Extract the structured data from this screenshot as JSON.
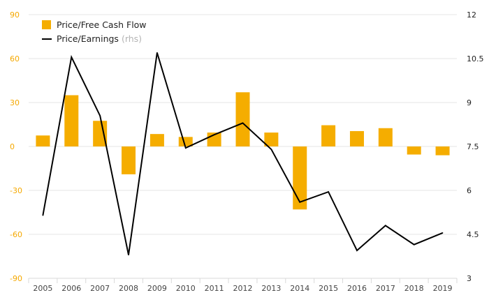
{
  "chart_data": {
    "type": "bar",
    "title": "",
    "xlabel": "",
    "ylabel": "",
    "categories": [
      "2005",
      "2006",
      "2007",
      "2008",
      "2009",
      "2010",
      "2011",
      "2012",
      "2013",
      "2014",
      "2015",
      "2016",
      "2017",
      "2018",
      "2019"
    ],
    "series": [
      {
        "name": "Price/Free Cash Flow",
        "type": "bar",
        "axis": "left",
        "color": "#f5ad00",
        "values": [
          7.5,
          35,
          17.5,
          -19,
          8.5,
          6.5,
          9.5,
          37,
          9.5,
          -43,
          14.5,
          10.5,
          12.5,
          -5.5,
          -6
        ]
      },
      {
        "name": "Price/Earnings",
        "note": "(rhs)",
        "type": "line",
        "axis": "right",
        "color": "#000000",
        "values": [
          5.15,
          10.55,
          8.55,
          3.8,
          10.7,
          7.45,
          7.9,
          8.3,
          7.4,
          5.6,
          5.95,
          3.95,
          4.8,
          4.15,
          4.55
        ]
      }
    ],
    "left_axis": {
      "ylim": [
        -90,
        90
      ],
      "ticks": [
        "90",
        "60",
        "30",
        "0",
        "-30",
        "-60",
        "-90"
      ],
      "tick_color": "#f5a800"
    },
    "right_axis": {
      "ylim": [
        3,
        12
      ],
      "ticks": [
        "12",
        "10.5",
        "9",
        "7.5",
        "6",
        "4.5",
        "3"
      ]
    },
    "grid": true,
    "legend": "top-left"
  }
}
